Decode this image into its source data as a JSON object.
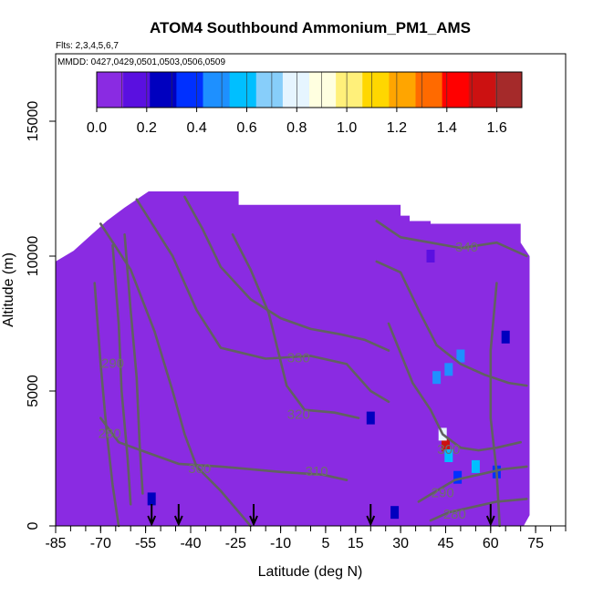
{
  "chart_data": {
    "type": "heatmap",
    "title": "ATOM4 Southbound Ammonium_PM1_AMS",
    "flights_label": "Flts: 2,3,4,5,6,7",
    "dates_label": "MMDD: 0427,0429,0501,0503,0506,0509",
    "xlabel": "Latitude (deg N)",
    "ylabel": "Altitude (m)",
    "xlim": [
      -85,
      85
    ],
    "ylim": [
      0,
      17500
    ],
    "x_ticks": [
      -85,
      -70,
      -55,
      -40,
      -25,
      -10,
      5,
      15,
      30,
      45,
      60,
      75
    ],
    "y_ticks": [
      0,
      5000,
      10000,
      15000
    ],
    "colorbar": {
      "range": [
        0,
        1.7
      ],
      "ticks": [
        "0.0",
        "0.2",
        "0.4",
        "0.6",
        "0.8",
        "1.0",
        "1.2",
        "1.4",
        "1.6"
      ],
      "colors": [
        "#8a2be2",
        "#5a10e0",
        "#0000bf",
        "#0030ff",
        "#1e90ff",
        "#00bfff",
        "#87cefa",
        "#e6f5ff",
        "#ffffe0",
        "#fff07a",
        "#ffd700",
        "#ffa500",
        "#ff6a00",
        "#ff0000",
        "#cc1111",
        "#a52a2a"
      ]
    },
    "field_background": "#8a2be2",
    "contour_labels": [
      {
        "text": "290",
        "x": -66,
        "y": 6000
      },
      {
        "text": "280",
        "x": -67,
        "y": 3400
      },
      {
        "text": "300",
        "x": -37,
        "y": 2100
      },
      {
        "text": "310",
        "x": 2,
        "y": 2000
      },
      {
        "text": "320",
        "x": -4,
        "y": 4100
      },
      {
        "text": "330",
        "x": -4,
        "y": 6200
      },
      {
        "text": "340",
        "x": 52,
        "y": 10300
      },
      {
        "text": "300",
        "x": 46,
        "y": 2800
      },
      {
        "text": "290",
        "x": 44,
        "y": 1200
      },
      {
        "text": "280",
        "x": 48,
        "y": 400
      }
    ],
    "takeoff_markers_lat": [
      -53,
      -44,
      -19,
      20,
      60
    ],
    "high_values": [
      {
        "lat": 45,
        "alt": 3000,
        "value": 1.5
      },
      {
        "lat": 44,
        "alt": 3400,
        "value": 0.8
      },
      {
        "lat": 46,
        "alt": 2600,
        "value": 0.6
      },
      {
        "lat": 42,
        "alt": 5500,
        "value": 0.5
      },
      {
        "lat": 46,
        "alt": 5800,
        "value": 0.5
      },
      {
        "lat": 50,
        "alt": 6300,
        "value": 0.45
      },
      {
        "lat": 55,
        "alt": 2200,
        "value": 0.55
      },
      {
        "lat": 49,
        "alt": 1800,
        "value": 0.4
      },
      {
        "lat": 20,
        "alt": 4000,
        "value": 0.3
      },
      {
        "lat": 65,
        "alt": 7000,
        "value": 0.25
      },
      {
        "lat": -53,
        "alt": 1000,
        "value": 0.3
      },
      {
        "lat": -65,
        "alt": 8000,
        "value": 0.1
      },
      {
        "lat": 40,
        "alt": 10000,
        "value": 0.2
      },
      {
        "lat": 62,
        "alt": 2000,
        "value": 0.35
      },
      {
        "lat": 28,
        "alt": 500,
        "value": 0.25
      }
    ]
  }
}
